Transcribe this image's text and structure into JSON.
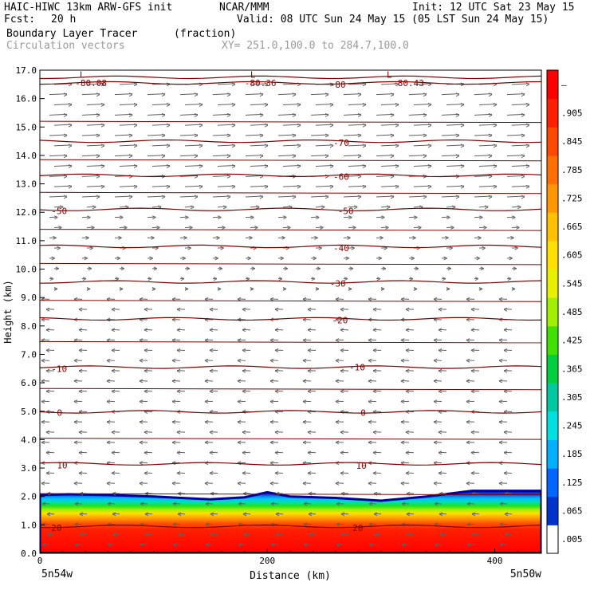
{
  "header": {
    "model": "HAIC-HIWC 13km ARW-GFS init",
    "org": "NCAR/MMM",
    "init": "Init: 12 UTC Sat 23 May 15",
    "fcst_label": "Fcst:",
    "fcst_value": "20 h",
    "valid": "Valid: 08 UTC Sun 24 May 15 (05 LST Sun 24 May 15)",
    "field1_name": "Boundary Layer Tracer",
    "field1_units": "(fraction)",
    "field2_name": "Circulation vectors",
    "xy_range": "XY= 251.0,100.0 to 284.7,100.0"
  },
  "chart_data": {
    "type": "heatmap",
    "xlabel": "Distance (km)",
    "ylabel": "Height (km)",
    "xlim": [
      0,
      441
    ],
    "ylim": [
      0,
      17
    ],
    "x_ticks": [
      0,
      200,
      400
    ],
    "y_ticks": [
      "0.0",
      "1.0",
      "2.0",
      "3.0",
      "4.0",
      "5.0",
      "6.0",
      "7.0",
      "8.0",
      "9.0",
      "10.0",
      "11.0",
      "12.0",
      "13.0",
      "14.0",
      "15.0",
      "16.0",
      "17.0"
    ],
    "x_endpoints": {
      "left": "5n54w",
      "right": "5n50w"
    },
    "colorbar": {
      "labels": [
        ".005",
        ".065",
        ".125",
        ".185",
        ".245",
        ".305",
        ".365",
        ".425",
        ".485",
        ".545",
        ".605",
        ".665",
        ".725",
        ".785",
        ".845",
        ".905",
        "–"
      ],
      "colors": [
        "#ffffff",
        "#0033cc",
        "#0066ff",
        "#00b0ff",
        "#00e0e0",
        "#00c8a0",
        "#00d040",
        "#40e000",
        "#a0f000",
        "#e8f000",
        "#ffe000",
        "#ffc000",
        "#ff9800",
        "#ff7000",
        "#ff4800",
        "#ff2000",
        "#ff0000"
      ]
    },
    "tracer_top_km": [
      [
        0,
        2.05
      ],
      [
        25,
        2.08
      ],
      [
        60,
        2.05
      ],
      [
        100,
        2.0
      ],
      [
        150,
        1.9
      ],
      [
        180,
        1.97
      ],
      [
        200,
        2.15
      ],
      [
        220,
        2.0
      ],
      [
        260,
        1.95
      ],
      [
        300,
        1.85
      ],
      [
        340,
        2.0
      ],
      [
        380,
        2.2
      ],
      [
        441,
        2.2
      ]
    ],
    "temperature_contours": [
      {
        "level": -80.36,
        "height_km": 16.75
      },
      {
        "level": -80,
        "height_km": 16.55
      },
      {
        "level": -70,
        "height_km": 14.5
      },
      {
        "level": -60,
        "height_km": 13.3
      },
      {
        "level": -50,
        "height_km": 12.1
      },
      {
        "level": -40,
        "height_km": 10.8
      },
      {
        "level": -30,
        "height_km": 9.55
      },
      {
        "level": -20,
        "height_km": 8.25
      },
      {
        "level": -10,
        "height_km": 6.55
      },
      {
        "level": 0,
        "height_km": 4.98
      },
      {
        "level": 10,
        "height_km": 3.15
      },
      {
        "level": 20,
        "height_km": 0.95
      }
    ],
    "contour_labels": [
      {
        "text": "-80.08",
        "x": 31,
        "y": 16.55
      },
      {
        "text": "-80.36",
        "x": 180,
        "y": 16.55
      },
      {
        "text": "-80",
        "x": 255,
        "y": 16.5
      },
      {
        "text": "-80.43",
        "x": 310,
        "y": 16.55
      },
      {
        "text": "L",
        "x": 35,
        "y": 16.85
      },
      {
        "text": "L",
        "x": 185,
        "y": 16.85
      },
      {
        "text": "L",
        "x": 305,
        "y": 16.85
      },
      {
        "text": "-70",
        "x": 258,
        "y": 14.45
      },
      {
        "text": "-60",
        "x": 258,
        "y": 13.25
      },
      {
        "text": "-50",
        "x": 10,
        "y": 12.05
      },
      {
        "text": "-50",
        "x": 262,
        "y": 12.05
      },
      {
        "text": "-40",
        "x": 258,
        "y": 10.75
      },
      {
        "text": "-30",
        "x": 255,
        "y": 9.5
      },
      {
        "text": "-20",
        "x": 257,
        "y": 8.2
      },
      {
        "text": "-10",
        "x": 10,
        "y": 6.5
      },
      {
        "text": "-10",
        "x": 272,
        "y": 6.55
      },
      {
        "text": "0",
        "x": 15,
        "y": 4.95
      },
      {
        "text": "0",
        "x": 282,
        "y": 4.95
      },
      {
        "text": "10",
        "x": 15,
        "y": 3.1
      },
      {
        "text": "10",
        "x": 278,
        "y": 3.08
      },
      {
        "text": "20",
        "x": 10,
        "y": 0.9
      },
      {
        "text": "20",
        "x": 275,
        "y": 0.9
      }
    ]
  }
}
